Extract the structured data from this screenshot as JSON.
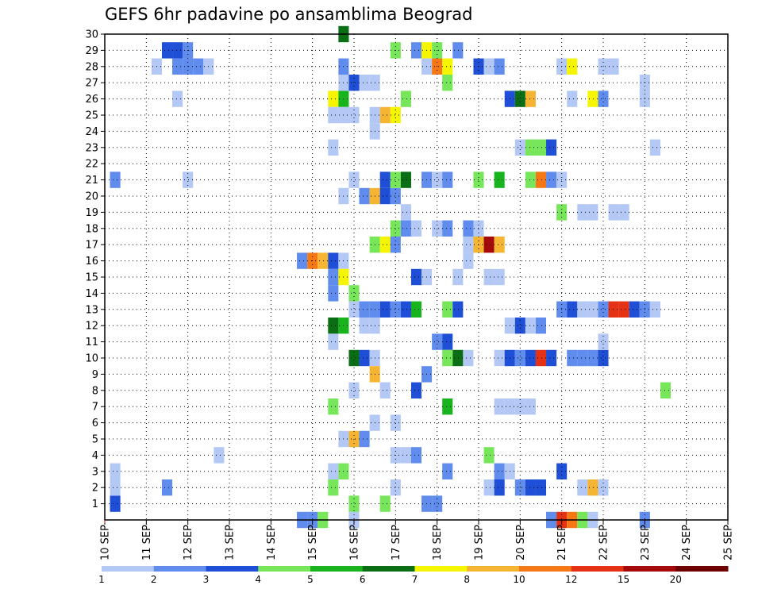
{
  "chart_data": {
    "type": "heatmap",
    "title": "GEFS 6hr padavine po ansamblima Beograd",
    "xlabel": "",
    "ylabel": "",
    "x_ticks": [
      "10 SEP",
      "11 SEP",
      "12 SEP",
      "13 SEP",
      "14 SEP",
      "15 SEP",
      "16 SEP",
      "17 SEP",
      "18 SEP",
      "19 SEP",
      "20 SEP",
      "21 SEP",
      "22 SEP",
      "23 SEP",
      "24 SEP",
      "25 SEP"
    ],
    "y_ticks": [
      "1",
      "2",
      "3",
      "4",
      "5",
      "6",
      "7",
      "8",
      "9",
      "10",
      "11",
      "12",
      "13",
      "14",
      "15",
      "16",
      "17",
      "18",
      "19",
      "20",
      "21",
      "22",
      "23",
      "24",
      "25",
      "26",
      "27",
      "28",
      "29",
      "30"
    ],
    "x_range_days": [
      10,
      25
    ],
    "y_range": [
      0,
      30
    ],
    "grid": true,
    "colorbar": {
      "labels": [
        "1",
        "2",
        "3",
        "4",
        "5",
        "6",
        "7",
        "8",
        "10",
        "12",
        "15",
        "20"
      ],
      "colors": [
        "#b4c8f5",
        "#5f8ced",
        "#1e4fd6",
        "#78e65a",
        "#18b41e",
        "#0a6e14",
        "#f5f500",
        "#f5b432",
        "#f57814",
        "#e63214",
        "#a50a0a",
        "#6e0000"
      ]
    },
    "cells": [
      {
        "x": 10.25,
        "y": 1,
        "c": 2
      },
      {
        "x": 10.25,
        "y": 2,
        "c": 0
      },
      {
        "x": 10.25,
        "y": 3,
        "c": 0
      },
      {
        "x": 10.25,
        "y": 21,
        "c": 1
      },
      {
        "x": 11.5,
        "y": 2,
        "c": 1
      },
      {
        "x": 11.25,
        "y": 28,
        "c": 0
      },
      {
        "x": 11.5,
        "y": 29,
        "c": 2
      },
      {
        "x": 11.75,
        "y": 29,
        "c": 2
      },
      {
        "x": 12,
        "y": 29,
        "c": 1
      },
      {
        "x": 11.75,
        "y": 28,
        "c": 1
      },
      {
        "x": 12,
        "y": 28,
        "c": 1
      },
      {
        "x": 12.25,
        "y": 28,
        "c": 1
      },
      {
        "x": 12.5,
        "y": 28,
        "c": 0
      },
      {
        "x": 11.75,
        "y": 26,
        "c": 0
      },
      {
        "x": 12,
        "y": 21,
        "c": 0
      },
      {
        "x": 12.75,
        "y": 4,
        "c": 0
      },
      {
        "x": 14.75,
        "y": 0,
        "c": 1
      },
      {
        "x": 15,
        "y": 0,
        "c": 1
      },
      {
        "x": 15.25,
        "y": 0,
        "c": 3
      },
      {
        "x": 16,
        "y": 0,
        "c": 0
      },
      {
        "x": 14.75,
        "y": 16,
        "c": 1
      },
      {
        "x": 15,
        "y": 16,
        "c": 8
      },
      {
        "x": 15.25,
        "y": 16,
        "c": 7
      },
      {
        "x": 15.5,
        "y": 16,
        "c": 2
      },
      {
        "x": 15.75,
        "y": 16,
        "c": 0
      },
      {
        "x": 15.5,
        "y": 15,
        "c": 1
      },
      {
        "x": 15.5,
        "y": 14,
        "c": 1
      },
      {
        "x": 15.75,
        "y": 15,
        "c": 6
      },
      {
        "x": 16,
        "y": 14,
        "c": 3
      },
      {
        "x": 15.5,
        "y": 12,
        "c": 5
      },
      {
        "x": 15.75,
        "y": 12,
        "c": 4
      },
      {
        "x": 15.5,
        "y": 11,
        "c": 0
      },
      {
        "x": 15.5,
        "y": 7,
        "c": 3
      },
      {
        "x": 15.5,
        "y": 3,
        "c": 0
      },
      {
        "x": 15.75,
        "y": 3,
        "c": 3
      },
      {
        "x": 15.5,
        "y": 2,
        "c": 3
      },
      {
        "x": 15.5,
        "y": 26,
        "c": 6
      },
      {
        "x": 15.75,
        "y": 26,
        "c": 4
      },
      {
        "x": 15.5,
        "y": 25,
        "c": 0
      },
      {
        "x": 15.75,
        "y": 25,
        "c": 0
      },
      {
        "x": 16,
        "y": 25,
        "c": 0
      },
      {
        "x": 15.5,
        "y": 23,
        "c": 0
      },
      {
        "x": 15.75,
        "y": 30,
        "c": 5
      },
      {
        "x": 15.75,
        "y": 28,
        "c": 1
      },
      {
        "x": 15.75,
        "y": 27,
        "c": 0
      },
      {
        "x": 16,
        "y": 27,
        "c": 2
      },
      {
        "x": 16.25,
        "y": 27,
        "c": 0
      },
      {
        "x": 16.5,
        "y": 27,
        "c": 0
      },
      {
        "x": 15.75,
        "y": 20,
        "c": 0
      },
      {
        "x": 16,
        "y": 21,
        "c": 0
      },
      {
        "x": 15.75,
        "y": 5,
        "c": 0
      },
      {
        "x": 16,
        "y": 5,
        "c": 7
      },
      {
        "x": 16.25,
        "y": 5,
        "c": 1
      },
      {
        "x": 16,
        "y": 10,
        "c": 5
      },
      {
        "x": 16.25,
        "y": 10,
        "c": 2
      },
      {
        "x": 16.5,
        "y": 10,
        "c": 0
      },
      {
        "x": 16,
        "y": 13,
        "c": 0
      },
      {
        "x": 16.25,
        "y": 13,
        "c": 1
      },
      {
        "x": 16.5,
        "y": 13,
        "c": 1
      },
      {
        "x": 16.75,
        "y": 13,
        "c": 2
      },
      {
        "x": 17,
        "y": 13,
        "c": 1
      },
      {
        "x": 17.25,
        "y": 13,
        "c": 2
      },
      {
        "x": 17.5,
        "y": 13,
        "c": 4
      },
      {
        "x": 16.25,
        "y": 12,
        "c": 0
      },
      {
        "x": 16.5,
        "y": 12,
        "c": 0
      },
      {
        "x": 16,
        "y": 8,
        "c": 0
      },
      {
        "x": 16,
        "y": 1,
        "c": 3
      },
      {
        "x": 16.25,
        "y": 20,
        "c": 1
      },
      {
        "x": 16.5,
        "y": 20,
        "c": 7
      },
      {
        "x": 16.75,
        "y": 20,
        "c": 2
      },
      {
        "x": 17,
        "y": 20,
        "c": 1
      },
      {
        "x": 16.75,
        "y": 21,
        "c": 2
      },
      {
        "x": 17,
        "y": 21,
        "c": 3
      },
      {
        "x": 17.25,
        "y": 21,
        "c": 5
      },
      {
        "x": 16.5,
        "y": 25,
        "c": 0
      },
      {
        "x": 16.75,
        "y": 25,
        "c": 7
      },
      {
        "x": 17,
        "y": 25,
        "c": 6
      },
      {
        "x": 16.5,
        "y": 24,
        "c": 0
      },
      {
        "x": 16.5,
        "y": 9,
        "c": 7
      },
      {
        "x": 16.5,
        "y": 6,
        "c": 0
      },
      {
        "x": 17,
        "y": 6,
        "c": 0
      },
      {
        "x": 16.75,
        "y": 8,
        "c": 0
      },
      {
        "x": 16.75,
        "y": 1,
        "c": 3
      },
      {
        "x": 16.5,
        "y": 17,
        "c": 3
      },
      {
        "x": 16.75,
        "y": 17,
        "c": 6
      },
      {
        "x": 17,
        "y": 17,
        "c": 1
      },
      {
        "x": 17,
        "y": 18,
        "c": 3
      },
      {
        "x": 17.25,
        "y": 18,
        "c": 1
      },
      {
        "x": 17.5,
        "y": 18,
        "c": 0
      },
      {
        "x": 17.25,
        "y": 19,
        "c": 0
      },
      {
        "x": 17,
        "y": 29,
        "c": 3
      },
      {
        "x": 17.25,
        "y": 26,
        "c": 3
      },
      {
        "x": 17,
        "y": 4,
        "c": 0
      },
      {
        "x": 17.25,
        "y": 4,
        "c": 0
      },
      {
        "x": 17.5,
        "y": 4,
        "c": 1
      },
      {
        "x": 17,
        "y": 2,
        "c": 0
      },
      {
        "x": 17.5,
        "y": 8,
        "c": 2
      },
      {
        "x": 17.5,
        "y": 15,
        "c": 2
      },
      {
        "x": 17.75,
        "y": 15,
        "c": 0
      },
      {
        "x": 17.5,
        "y": 29,
        "c": 1
      },
      {
        "x": 17.75,
        "y": 29,
        "c": 6
      },
      {
        "x": 18,
        "y": 29,
        "c": 3
      },
      {
        "x": 17.75,
        "y": 28,
        "c": 0
      },
      {
        "x": 18,
        "y": 28,
        "c": 8
      },
      {
        "x": 18.25,
        "y": 28,
        "c": 6
      },
      {
        "x": 17.75,
        "y": 21,
        "c": 1
      },
      {
        "x": 18,
        "y": 21,
        "c": 0
      },
      {
        "x": 18.25,
        "y": 21,
        "c": 1
      },
      {
        "x": 17.75,
        "y": 9,
        "c": 1
      },
      {
        "x": 17.75,
        "y": 1,
        "c": 1
      },
      {
        "x": 18,
        "y": 1,
        "c": 1
      },
      {
        "x": 18.25,
        "y": 27,
        "c": 3
      },
      {
        "x": 18,
        "y": 18,
        "c": 0
      },
      {
        "x": 18.25,
        "y": 18,
        "c": 1
      },
      {
        "x": 18,
        "y": 11,
        "c": 1
      },
      {
        "x": 18.25,
        "y": 11,
        "c": 2
      },
      {
        "x": 18.25,
        "y": 13,
        "c": 3
      },
      {
        "x": 18.5,
        "y": 13,
        "c": 2
      },
      {
        "x": 18.25,
        "y": 10,
        "c": 3
      },
      {
        "x": 18.5,
        "y": 10,
        "c": 5
      },
      {
        "x": 18.75,
        "y": 10,
        "c": 0
      },
      {
        "x": 18.25,
        "y": 7,
        "c": 4
      },
      {
        "x": 18.25,
        "y": 3,
        "c": 1
      },
      {
        "x": 18.5,
        "y": 29,
        "c": 1
      },
      {
        "x": 18.5,
        "y": 15,
        "c": 0
      },
      {
        "x": 18.75,
        "y": 17,
        "c": 0
      },
      {
        "x": 19,
        "y": 17,
        "c": 7
      },
      {
        "x": 19.25,
        "y": 17,
        "c": 10
      },
      {
        "x": 19.5,
        "y": 17,
        "c": 7
      },
      {
        "x": 18.75,
        "y": 18,
        "c": 1
      },
      {
        "x": 19,
        "y": 18,
        "c": 0
      },
      {
        "x": 18.75,
        "y": 16,
        "c": 0
      },
      {
        "x": 19,
        "y": 21,
        "c": 3
      },
      {
        "x": 19.5,
        "y": 21,
        "c": 4
      },
      {
        "x": 19,
        "y": 28,
        "c": 2
      },
      {
        "x": 19.25,
        "y": 28,
        "c": 0
      },
      {
        "x": 19.5,
        "y": 28,
        "c": 1
      },
      {
        "x": 19.25,
        "y": 15,
        "c": 0
      },
      {
        "x": 19.5,
        "y": 15,
        "c": 0
      },
      {
        "x": 19.5,
        "y": 10,
        "c": 0
      },
      {
        "x": 19.75,
        "y": 10,
        "c": 2
      },
      {
        "x": 20,
        "y": 10,
        "c": 1
      },
      {
        "x": 20.25,
        "y": 10,
        "c": 2
      },
      {
        "x": 20.5,
        "y": 10,
        "c": 9
      },
      {
        "x": 20.75,
        "y": 10,
        "c": 2
      },
      {
        "x": 19.5,
        "y": 7,
        "c": 0
      },
      {
        "x": 19.75,
        "y": 7,
        "c": 0
      },
      {
        "x": 20,
        "y": 7,
        "c": 0
      },
      {
        "x": 20.25,
        "y": 7,
        "c": 0
      },
      {
        "x": 19.25,
        "y": 4,
        "c": 3
      },
      {
        "x": 19.5,
        "y": 3,
        "c": 1
      },
      {
        "x": 19.75,
        "y": 3,
        "c": 0
      },
      {
        "x": 19.25,
        "y": 2,
        "c": 0
      },
      {
        "x": 19.5,
        "y": 2,
        "c": 2
      },
      {
        "x": 20,
        "y": 2,
        "c": 1
      },
      {
        "x": 20.25,
        "y": 2,
        "c": 2
      },
      {
        "x": 20.5,
        "y": 2,
        "c": 2
      },
      {
        "x": 19.75,
        "y": 12,
        "c": 0
      },
      {
        "x": 20,
        "y": 12,
        "c": 2
      },
      {
        "x": 20.25,
        "y": 12,
        "c": 0
      },
      {
        "x": 20.5,
        "y": 12,
        "c": 1
      },
      {
        "x": 19.75,
        "y": 26,
        "c": 2
      },
      {
        "x": 20,
        "y": 26,
        "c": 5
      },
      {
        "x": 20.25,
        "y": 26,
        "c": 7
      },
      {
        "x": 20,
        "y": 23,
        "c": 0
      },
      {
        "x": 20.25,
        "y": 23,
        "c": 3
      },
      {
        "x": 20.5,
        "y": 23,
        "c": 3
      },
      {
        "x": 20.75,
        "y": 23,
        "c": 2
      },
      {
        "x": 20.25,
        "y": 21,
        "c": 3
      },
      {
        "x": 20.5,
        "y": 21,
        "c": 8
      },
      {
        "x": 20.75,
        "y": 21,
        "c": 1
      },
      {
        "x": 21,
        "y": 21,
        "c": 0
      },
      {
        "x": 20.75,
        "y": 0,
        "c": 1
      },
      {
        "x": 21,
        "y": 0,
        "c": 9
      },
      {
        "x": 21.25,
        "y": 0,
        "c": 8
      },
      {
        "x": 21.5,
        "y": 0,
        "c": 3
      },
      {
        "x": 21.75,
        "y": 0,
        "c": 0
      },
      {
        "x": 23,
        "y": 0,
        "c": 1
      },
      {
        "x": 21,
        "y": 19,
        "c": 3
      },
      {
        "x": 21,
        "y": 28,
        "c": 0
      },
      {
        "x": 21.25,
        "y": 28,
        "c": 6
      },
      {
        "x": 21.25,
        "y": 26,
        "c": 0
      },
      {
        "x": 21,
        "y": 3,
        "c": 2
      },
      {
        "x": 21,
        "y": 13,
        "c": 1
      },
      {
        "x": 21.25,
        "y": 13,
        "c": 2
      },
      {
        "x": 21.5,
        "y": 13,
        "c": 0
      },
      {
        "x": 21.75,
        "y": 13,
        "c": 0
      },
      {
        "x": 22,
        "y": 13,
        "c": 1
      },
      {
        "x": 22.25,
        "y": 13,
        "c": 9
      },
      {
        "x": 22.5,
        "y": 13,
        "c": 9
      },
      {
        "x": 22.75,
        "y": 13,
        "c": 2
      },
      {
        "x": 23,
        "y": 13,
        "c": 1
      },
      {
        "x": 23.25,
        "y": 13,
        "c": 0
      },
      {
        "x": 21.25,
        "y": 10,
        "c": 1
      },
      {
        "x": 21.5,
        "y": 10,
        "c": 1
      },
      {
        "x": 21.75,
        "y": 10,
        "c": 1
      },
      {
        "x": 22,
        "y": 10,
        "c": 2
      },
      {
        "x": 21.5,
        "y": 2,
        "c": 0
      },
      {
        "x": 21.75,
        "y": 2,
        "c": 7
      },
      {
        "x": 22,
        "y": 2,
        "c": 0
      },
      {
        "x": 21.75,
        "y": 26,
        "c": 6
      },
      {
        "x": 22,
        "y": 26,
        "c": 1
      },
      {
        "x": 21.5,
        "y": 19,
        "c": 0
      },
      {
        "x": 21.75,
        "y": 19,
        "c": 0
      },
      {
        "x": 22.25,
        "y": 19,
        "c": 0
      },
      {
        "x": 22.5,
        "y": 19,
        "c": 0
      },
      {
        "x": 22,
        "y": 28,
        "c": 0
      },
      {
        "x": 22.25,
        "y": 28,
        "c": 0
      },
      {
        "x": 22,
        "y": 11,
        "c": 0
      },
      {
        "x": 23,
        "y": 27,
        "c": 0
      },
      {
        "x": 23,
        "y": 26,
        "c": 0
      },
      {
        "x": 23.25,
        "y": 23,
        "c": 0
      },
      {
        "x": 23.5,
        "y": 8,
        "c": 3
      }
    ]
  }
}
